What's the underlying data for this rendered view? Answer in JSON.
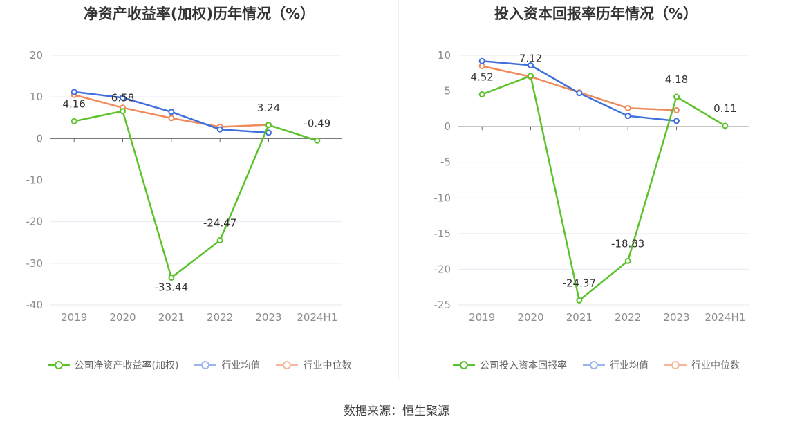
{
  "source": "数据来源：恒生聚源",
  "colors": {
    "company": "#5bc22a",
    "industry_avg": "#3f6fde",
    "industry_median": "#f08a5a",
    "grid": "#e6e9f2",
    "axis": "#666666",
    "tick_text": "#8c8c8c"
  },
  "chart_data": [
    {
      "type": "line",
      "title": "净资产收益率(加权)历年情况（%）",
      "categories": [
        "2019",
        "2020",
        "2021",
        "2022",
        "2023",
        "2024H1"
      ],
      "ylim": [
        -40,
        20
      ],
      "yticks": [
        20,
        10,
        0,
        -10,
        -20,
        -30,
        -40
      ],
      "grid": true,
      "legend_position": "bottom",
      "series": [
        {
          "name": "公司净资产收益率(加权)",
          "key": "company",
          "values": [
            4.16,
            6.58,
            -33.44,
            -24.47,
            3.24,
            -0.49
          ],
          "labels": [
            "4.16",
            "6.58",
            "-33.44",
            "-24.47",
            "3.24",
            "-0.49"
          ]
        },
        {
          "name": "行业均值",
          "key": "industry_avg",
          "values": [
            11.2,
            9.8,
            6.4,
            2.2,
            1.4,
            null
          ]
        },
        {
          "name": "行业中位数",
          "key": "industry_median",
          "values": [
            10.5,
            7.4,
            4.9,
            2.8,
            3.3,
            null
          ]
        }
      ]
    },
    {
      "type": "line",
      "title": "投入资本回报率历年情况（%）",
      "categories": [
        "2019",
        "2020",
        "2021",
        "2022",
        "2023",
        "2024H1"
      ],
      "ylim": [
        -25,
        10
      ],
      "yticks": [
        10,
        5,
        0,
        -5,
        -10,
        -15,
        -20,
        -25
      ],
      "grid": true,
      "legend_position": "bottom",
      "series": [
        {
          "name": "公司投入资本回报率",
          "key": "company",
          "values": [
            4.52,
            7.12,
            -24.37,
            -18.83,
            4.18,
            0.11
          ],
          "labels": [
            "4.52",
            "7.12",
            "-24.37",
            "-18.83",
            "4.18",
            "0.11"
          ]
        },
        {
          "name": "行业均值",
          "key": "industry_avg",
          "values": [
            9.2,
            8.6,
            4.7,
            1.5,
            0.8,
            null
          ]
        },
        {
          "name": "行业中位数",
          "key": "industry_median",
          "values": [
            8.5,
            7.0,
            4.8,
            2.6,
            2.3,
            null
          ]
        }
      ]
    }
  ]
}
